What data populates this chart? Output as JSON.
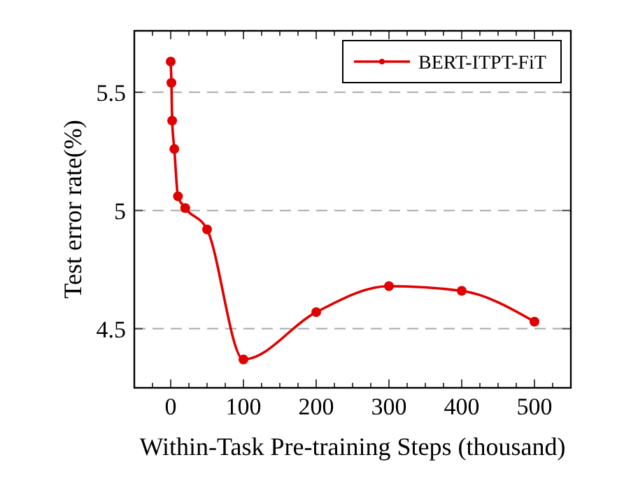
{
  "chart_data": {
    "type": "line",
    "xlabel": "Within-Task Pre-training Steps (thousand)",
    "ylabel": "Test error rate(%)",
    "x": [
      0,
      1,
      2,
      5,
      10,
      20,
      50,
      100,
      200,
      300,
      400,
      500
    ],
    "series": [
      {
        "name": "BERT-ITPT-FiT",
        "color": "#e00000",
        "values": [
          5.63,
          5.54,
          5.38,
          5.26,
          5.06,
          5.01,
          4.92,
          4.37,
          4.57,
          4.68,
          4.66,
          4.53
        ]
      }
    ],
    "xlim": [
      -50,
      550
    ],
    "xticks": [
      {
        "value": -25,
        "label": null
      },
      0,
      {
        "value": 25,
        "label": null
      },
      {
        "value": 50,
        "label": null
      },
      {
        "value": 75,
        "label": null
      },
      100,
      {
        "value": 125,
        "label": null
      },
      {
        "value": 150,
        "label": null
      },
      {
        "value": 175,
        "label": null
      },
      200,
      {
        "value": 225,
        "label": null
      },
      {
        "value": 250,
        "label": null
      },
      {
        "value": 275,
        "label": null
      },
      300,
      {
        "value": 325,
        "label": null
      },
      {
        "value": 350,
        "label": null
      },
      {
        "value": 375,
        "label": null
      },
      400,
      {
        "value": 425,
        "label": null
      },
      {
        "value": 450,
        "label": null
      },
      {
        "value": 475,
        "label": null
      },
      500,
      {
        "value": 525,
        "label": null
      }
    ],
    "ylim": [
      4.25,
      5.76
    ],
    "yticks": [
      4.5,
      5,
      5.5
    ],
    "grid": "y",
    "legend": "top right",
    "marker": "circle",
    "line_style": "solid"
  }
}
